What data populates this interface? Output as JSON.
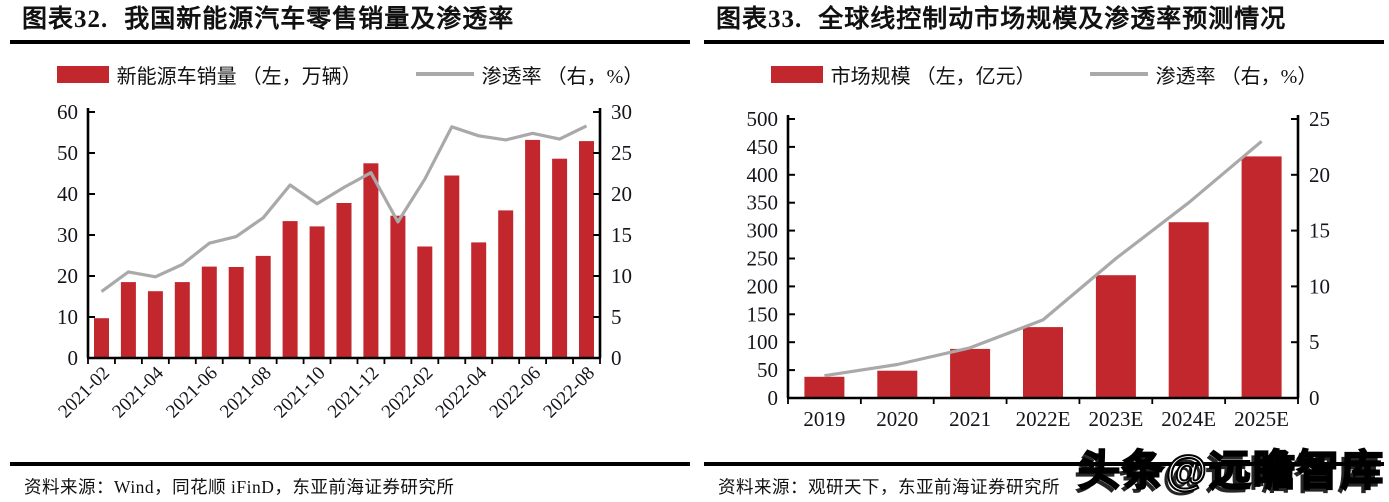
{
  "page": {
    "background": "#ffffff"
  },
  "colors": {
    "bar": "#C2272D",
    "line": "#A9A9A9",
    "axis": "#000000",
    "text": "#14141c"
  },
  "watermark": {
    "text": "头条@远瞻智库"
  },
  "panels": [
    {
      "title_label": "图表32.",
      "title_text": "我国新能源汽车零售销量及渗透率",
      "legend_bar_label": "新能源车销量 （左，万辆）",
      "legend_line_label": "渗透率 （右，%）",
      "source": "资料来源：Wind，同花顺 iFinD，东亚前海证券研究所"
    },
    {
      "title_label": "图表33.",
      "title_text": "全球线控制动市场规模及渗透率预测情况",
      "legend_bar_label": "市场规模 （左，亿元）",
      "legend_line_label": "渗透率 （右，%）",
      "source": "资料来源：观研天下，东亚前海证券研究所"
    }
  ],
  "chart_data": [
    {
      "type": "bar+line",
      "title": "我国新能源汽车零售销量及渗透率",
      "categories": [
        "2021-02",
        "2021-03",
        "2021-04",
        "2021-05",
        "2021-06",
        "2021-07",
        "2021-08",
        "2021-09",
        "2021-10",
        "2021-11",
        "2021-12",
        "2022-01",
        "2022-02",
        "2022-03",
        "2022-04",
        "2022-05",
        "2022-06",
        "2022-07",
        "2022-08"
      ],
      "series": [
        {
          "name": "新能源车销量 （左，万辆）",
          "type": "bar",
          "axis": "left",
          "values": [
            9.7,
            18.5,
            16.3,
            18.5,
            22.3,
            22.2,
            24.9,
            33.4,
            32.1,
            37.8,
            47.5,
            34.7,
            27.2,
            44.5,
            28.2,
            36.0,
            53.2,
            48.6,
            52.9
          ]
        },
        {
          "name": "渗透率 （右，%）",
          "type": "line",
          "axis": "right",
          "values": [
            8.1,
            10.5,
            9.9,
            11.4,
            14.0,
            14.8,
            17.1,
            21.1,
            18.8,
            20.8,
            22.6,
            16.6,
            21.8,
            28.2,
            27.1,
            26.6,
            27.4,
            26.7,
            28.3
          ]
        }
      ],
      "left_axis": {
        "min": 0,
        "max": 60,
        "step": 10
      },
      "right_axis": {
        "min": 0,
        "max": 30,
        "step": 5
      },
      "x_label_interval": 2,
      "grid": false,
      "legend_position": "top"
    },
    {
      "type": "bar+line",
      "title": "全球线控制动市场规模及渗透率预测情况",
      "categories": [
        "2019",
        "2020",
        "2021",
        "2022E",
        "2023E",
        "2024E",
        "2025E"
      ],
      "series": [
        {
          "name": "市场规模 （左，亿元）",
          "type": "bar",
          "axis": "left",
          "values": [
            38,
            49,
            88,
            127,
            220,
            315,
            433
          ]
        },
        {
          "name": "渗透率 （右，%）",
          "type": "line",
          "axis": "right",
          "values": [
            2.0,
            3.0,
            4.5,
            7.0,
            12.5,
            17.5,
            23.0
          ]
        }
      ],
      "left_axis": {
        "min": 0,
        "max": 500,
        "step": 50
      },
      "right_axis": {
        "min": 0,
        "max": 25,
        "step": 5
      },
      "x_label_interval": 1,
      "grid": false,
      "legend_position": "top"
    }
  ]
}
